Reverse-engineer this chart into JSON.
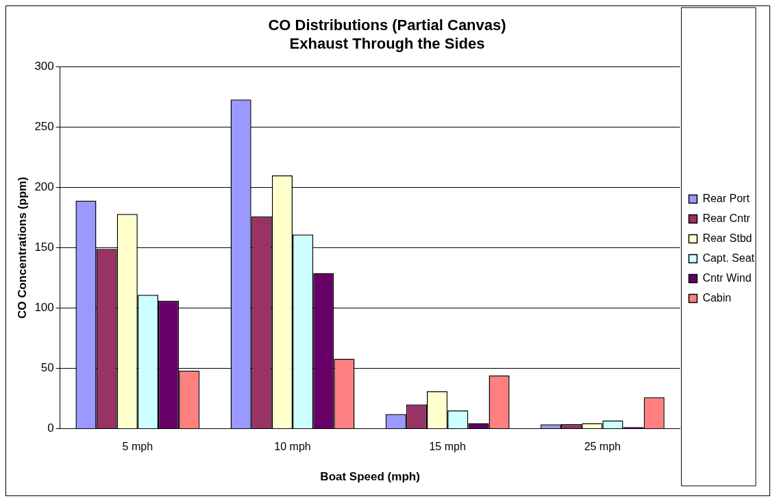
{
  "chart_data": {
    "type": "bar",
    "title": "CO Distributions (Partial Canvas)",
    "subtitle": "Exhaust Through the Sides",
    "xlabel": "Boat Speed (mph)",
    "ylabel": "CO Concentrations (ppm)",
    "categories": [
      "5 mph",
      "10 mph",
      "15 mph",
      "25 mph"
    ],
    "series": [
      {
        "name": "Rear Port",
        "color": "#9999ff",
        "values": [
          189,
          273,
          12,
          3.5
        ]
      },
      {
        "name": "Rear Cntr",
        "color": "#993366",
        "values": [
          149,
          176,
          20,
          3.7
        ]
      },
      {
        "name": "Rear Stbd",
        "color": "#ffffcc",
        "values": [
          178,
          210,
          31,
          4.5
        ]
      },
      {
        "name": "Capt. Seat",
        "color": "#ccffff",
        "values": [
          111,
          161,
          15,
          6.7
        ]
      },
      {
        "name": "Cntr Wind",
        "color": "#660066",
        "values": [
          106,
          129,
          4.5,
          1.2
        ]
      },
      {
        "name": "Cabin",
        "color": "#ff8080",
        "values": [
          48,
          58,
          44,
          26
        ]
      }
    ],
    "ylim": [
      0,
      300
    ],
    "yticks": [
      0,
      50,
      100,
      150,
      200,
      250,
      300
    ],
    "grid": "y",
    "legend": "right"
  }
}
